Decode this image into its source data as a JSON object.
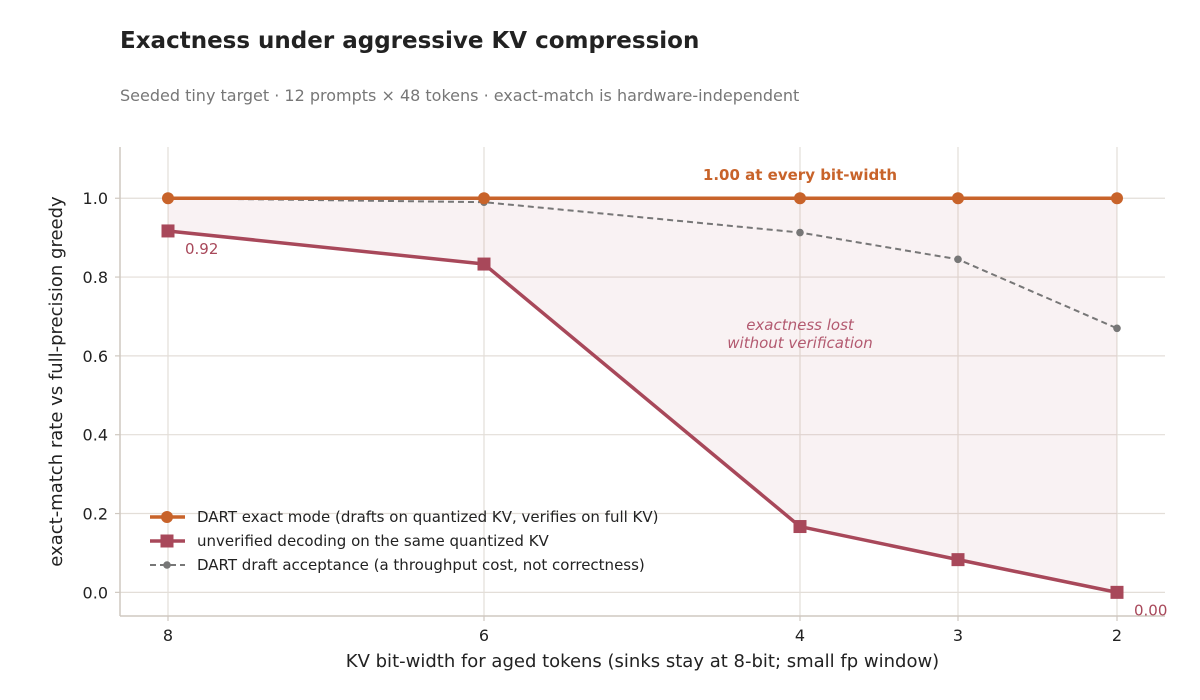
{
  "title": "Exactness under aggressive KV compression",
  "subtitle": "Seeded tiny target · 12 prompts × 48 tokens · exact-match is hardware-independent",
  "chart_data": {
    "type": "line",
    "x": [
      8,
      6,
      4,
      3,
      2
    ],
    "x_tick_labels": [
      "8",
      "6",
      "4",
      "3",
      "2"
    ],
    "xlabel": "KV bit-width for aged tokens (sinks stay at 8-bit; small fp window)",
    "ylabel": "exact-match rate vs full-precision greedy",
    "ylim": [
      -0.06,
      1.13
    ],
    "y_ticks": [
      0.0,
      0.2,
      0.4,
      0.6,
      0.8,
      1.0
    ],
    "y_tick_labels": [
      "0.0",
      "0.2",
      "0.4",
      "0.6",
      "0.8",
      "1.0"
    ],
    "grid": true,
    "legend_position": "lower-left",
    "series": [
      {
        "name": "DART exact mode (drafts on quantized KV, verifies on full KV)",
        "values": [
          1.0,
          1.0,
          1.0,
          1.0,
          1.0
        ],
        "color": "#c8632a",
        "marker": "circle",
        "style": "solid"
      },
      {
        "name": "unverified decoding on the same quantized KV",
        "values": [
          0.917,
          0.833,
          0.167,
          0.083,
          0.0
        ],
        "color": "#a8485a",
        "marker": "square",
        "style": "solid"
      },
      {
        "name": "DART draft acceptance (a throughput cost, not correctness)",
        "values": [
          1.0,
          0.99,
          0.913,
          0.845,
          0.67
        ],
        "color": "#777777",
        "marker": "dot",
        "style": "dashed"
      }
    ],
    "annotations": {
      "exact_label": "1.00 at every bit-width",
      "gap_label_line1": "exactness lost",
      "gap_label_line2": "without verification",
      "first_value_label": "0.92",
      "last_value_label": "0.00"
    }
  }
}
